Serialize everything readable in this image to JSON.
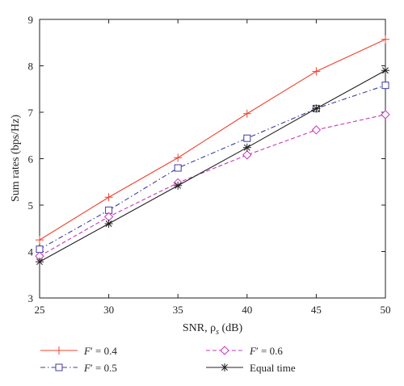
{
  "chart_data": {
    "type": "line",
    "title": "",
    "xlabel": "SNR, ρ",
    "xlabel_sub": "s",
    "xlabel_unit": " (dB)",
    "ylabel": "Sum rates (bps/Hz)",
    "xlim": [
      25,
      50
    ],
    "ylim": [
      3,
      9
    ],
    "x": [
      25,
      30,
      35,
      40,
      45,
      50
    ],
    "x_ticks": [
      "25",
      "30",
      "35",
      "40",
      "45",
      "50"
    ],
    "y_ticks": [
      "3",
      "4",
      "5",
      "6",
      "7",
      "8",
      "9"
    ],
    "grid": false,
    "legend_position": "below",
    "series": [
      {
        "name": "F′ = 0.4",
        "name_prefix": "F",
        "name_suffix": "′ = 0.4",
        "color": "#f0412e",
        "dash": "solid",
        "marker": "plus",
        "values": [
          4.25,
          5.17,
          6.02,
          6.97,
          7.88,
          8.57
        ]
      },
      {
        "name": "F′ = 0.5",
        "name_prefix": "F",
        "name_suffix": "′ = 0.5",
        "color": "#3d3d9e",
        "dash": "dashdot",
        "marker": "square",
        "values": [
          4.05,
          4.89,
          5.8,
          6.44,
          7.08,
          7.58
        ]
      },
      {
        "name": "F′ = 0.6",
        "name_prefix": "F",
        "name_suffix": "′ = 0.6",
        "color": "#c738b8",
        "dash": "dashed",
        "marker": "diamond",
        "values": [
          3.9,
          4.75,
          5.48,
          6.08,
          6.62,
          6.95
        ]
      },
      {
        "name": "Equal time",
        "name_prefix": "",
        "name_suffix": "Equal time",
        "color": "#231f20",
        "dash": "solid",
        "marker": "asterisk",
        "values": [
          3.78,
          4.6,
          5.42,
          6.24,
          7.08,
          7.9
        ]
      }
    ]
  }
}
